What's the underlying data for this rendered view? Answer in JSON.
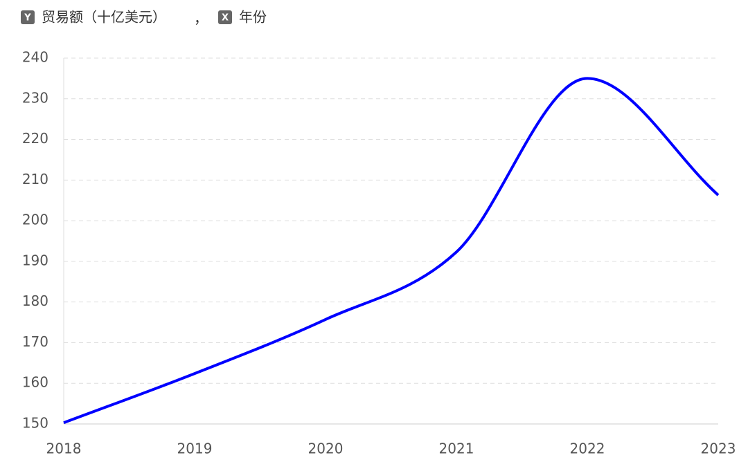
{
  "chart_data": {
    "type": "line",
    "y_badge": "Y",
    "y_label": "贸易额（十亿美元）",
    "label_separator": "，",
    "x_badge": "X",
    "x_label": "年份",
    "categories": [
      "2018",
      "2019",
      "2020",
      "2021",
      "2022",
      "2023"
    ],
    "series": [
      {
        "name": "贸易额（十亿美元）",
        "color": "#0000ff",
        "values": [
          150.3,
          162.4,
          175.7,
          192.3,
          235,
          206.3
        ]
      }
    ],
    "ylim": [
      150,
      240
    ],
    "yticks": [
      150,
      160,
      170,
      180,
      190,
      200,
      210,
      220,
      230,
      240
    ],
    "grid": true,
    "smooth": true
  }
}
